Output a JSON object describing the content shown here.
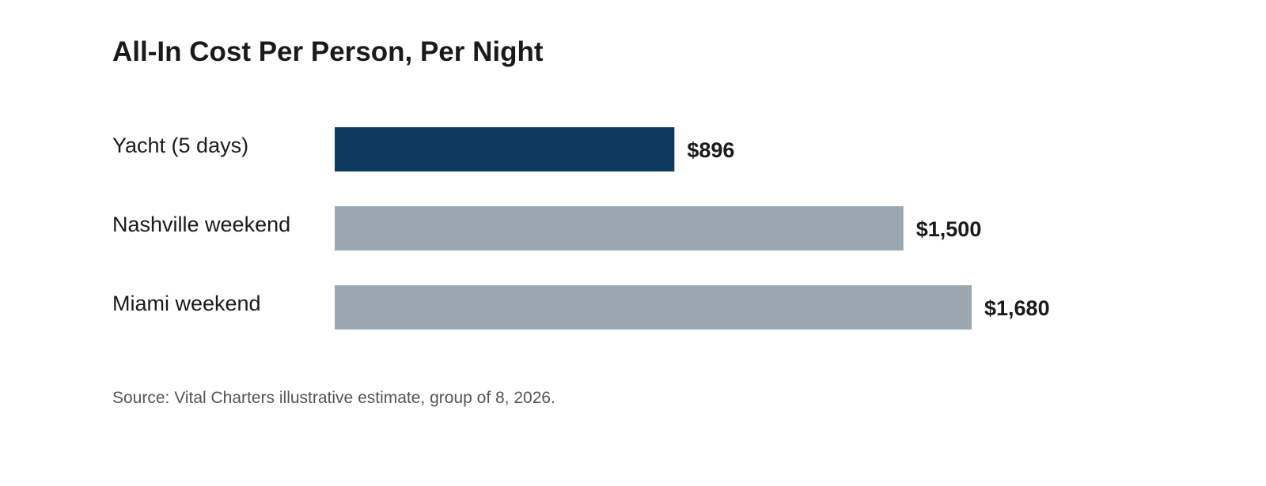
{
  "chart_data": {
    "type": "bar",
    "orientation": "horizontal",
    "title": "All-In Cost Per Person, Per Night",
    "categories": [
      "Yacht (5 days)",
      "Nashville weekend",
      "Miami weekend"
    ],
    "values": [
      896,
      1500,
      1680
    ],
    "value_labels": [
      "$896",
      "$1,500",
      "$1,680"
    ],
    "bar_colors": [
      "#0f3a5f",
      "#9ba7b0",
      "#9ba7b0"
    ],
    "xlabel": "",
    "ylabel": "",
    "xlim": [
      0,
      1680
    ],
    "grid": false,
    "legend": "none"
  },
  "source": "Source: Vital Charters illustrative estimate, group of 8, 2026."
}
